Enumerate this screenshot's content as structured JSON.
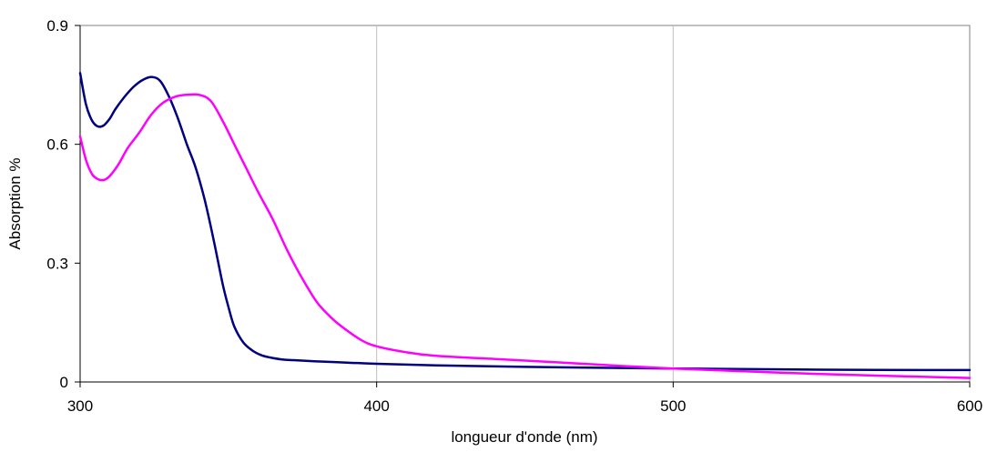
{
  "chart_data": {
    "type": "line",
    "xlabel": "longueur d'onde (nm)",
    "ylabel": "Absorption %",
    "xlim": [
      300,
      600
    ],
    "ylim": [
      0,
      0.9
    ],
    "x_ticks": [
      300,
      400,
      500,
      600
    ],
    "y_ticks": [
      0,
      0.3,
      0.6,
      0.9
    ],
    "x_tick_labels": [
      "300",
      "400",
      "500",
      "600"
    ],
    "y_tick_labels": [
      "0",
      "0.3",
      "0.6",
      "0.9"
    ],
    "grid": "vertical lines at x ticks",
    "legend": "none",
    "series": [
      {
        "color": "#000080",
        "x": [
          300,
          302,
          304,
          306,
          308,
          310,
          312,
          315,
          318,
          321,
          324,
          327,
          330,
          333,
          336,
          339,
          342,
          345,
          348,
          350,
          352,
          355,
          358,
          361,
          364,
          368,
          372,
          380,
          390,
          400,
          420,
          450,
          500,
          550,
          600
        ],
        "y": [
          0.78,
          0.7,
          0.66,
          0.645,
          0.648,
          0.665,
          0.69,
          0.72,
          0.745,
          0.762,
          0.77,
          0.76,
          0.72,
          0.665,
          0.6,
          0.54,
          0.46,
          0.36,
          0.25,
          0.19,
          0.14,
          0.1,
          0.08,
          0.068,
          0.062,
          0.057,
          0.055,
          0.052,
          0.049,
          0.046,
          0.042,
          0.038,
          0.034,
          0.031,
          0.03
        ]
      },
      {
        "color": "#ff00ff",
        "x": [
          300,
          302,
          304,
          306,
          308,
          310,
          313,
          316,
          320,
          324,
          328,
          332,
          336,
          340,
          344,
          348,
          352,
          356,
          360,
          365,
          370,
          375,
          380,
          385,
          390,
          395,
          400,
          410,
          420,
          440,
          460,
          500,
          550,
          600
        ],
        "y": [
          0.62,
          0.56,
          0.525,
          0.512,
          0.51,
          0.52,
          0.55,
          0.59,
          0.63,
          0.675,
          0.705,
          0.72,
          0.725,
          0.725,
          0.71,
          0.66,
          0.6,
          0.54,
          0.48,
          0.41,
          0.33,
          0.26,
          0.2,
          0.16,
          0.13,
          0.105,
          0.09,
          0.075,
          0.066,
          0.058,
          0.05,
          0.034,
          0.02,
          0.01
        ]
      }
    ]
  }
}
